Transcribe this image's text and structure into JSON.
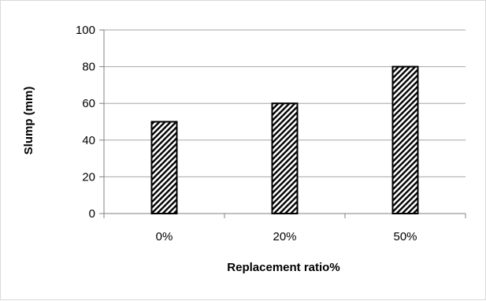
{
  "chart_data": {
    "type": "bar",
    "title": "",
    "xlabel": "Replacement ratio%",
    "ylabel": "Slump (mm)",
    "categories": [
      "0%",
      "20%",
      "50%"
    ],
    "values": [
      50,
      60,
      80
    ],
    "ylim": [
      0,
      100
    ],
    "yticks": [
      0,
      20,
      40,
      60,
      80,
      100
    ],
    "grid": true,
    "legend": "none",
    "bar_pattern": "diagonal-hatch",
    "colors": {
      "bar_stroke": "#000000",
      "grid": "#a6a6a6",
      "axis": "#808080",
      "frame": "#d9d9d9"
    }
  }
}
